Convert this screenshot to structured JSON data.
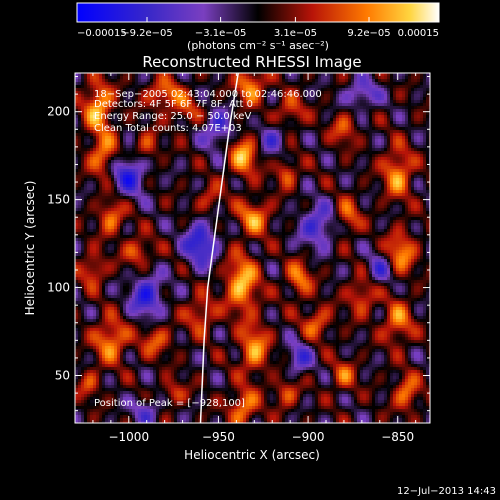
{
  "chart_data": {
    "type": "heatmap",
    "title": "Reconstructed RHESSI Image",
    "xlabel": "Heliocentric X (arcsec)",
    "ylabel": "Heliocentric Y (arcsec)",
    "xlim": [
      -1030,
      -832
    ],
    "ylim": [
      23,
      222
    ],
    "x_ticks": [
      -1000,
      -950,
      -900,
      -850
    ],
    "x_tick_labels": [
      "−1000",
      "−950",
      "−900",
      "−850"
    ],
    "y_ticks": [
      50,
      100,
      150,
      200
    ],
    "y_tick_labels": [
      "50",
      "100",
      "150",
      "200"
    ],
    "colorbar": {
      "ticks": [
        -0.00015,
        -9.2e-05,
        -3.1e-05,
        3.1e-05,
        9.2e-05,
        0.00015
      ],
      "tick_labels": [
        "−0.00015",
        "−9.2e−05",
        "−3.1e−05",
        "3.1e−05",
        "9.2e−05",
        "0.00015"
      ],
      "units_label": "(photons cm⁻² s⁻¹ asec⁻²)",
      "range": [
        -0.00015,
        0.00015
      ]
    },
    "annotations": [
      "18−Sep−2005 02:43:04.000 to 02:46:46.000",
      "Detectors: 4F 5F 6F 7F 8F, Att 0",
      "Energy Range: 25.0 − 50.0 keV",
      "Clean    Total counts: 4.07E+03"
    ],
    "peak_label": "Position of Peak = [−928,100]",
    "peak": [
      -928,
      100
    ],
    "limb_curve": [
      [
        -939,
        222
      ],
      [
        -944,
        190
      ],
      [
        -948,
        160
      ],
      [
        -952,
        130
      ],
      [
        -956,
        100
      ],
      [
        -958,
        70
      ],
      [
        -960,
        23
      ]
    ],
    "footer_timestamp": "12−Jul−2013 14:43"
  }
}
